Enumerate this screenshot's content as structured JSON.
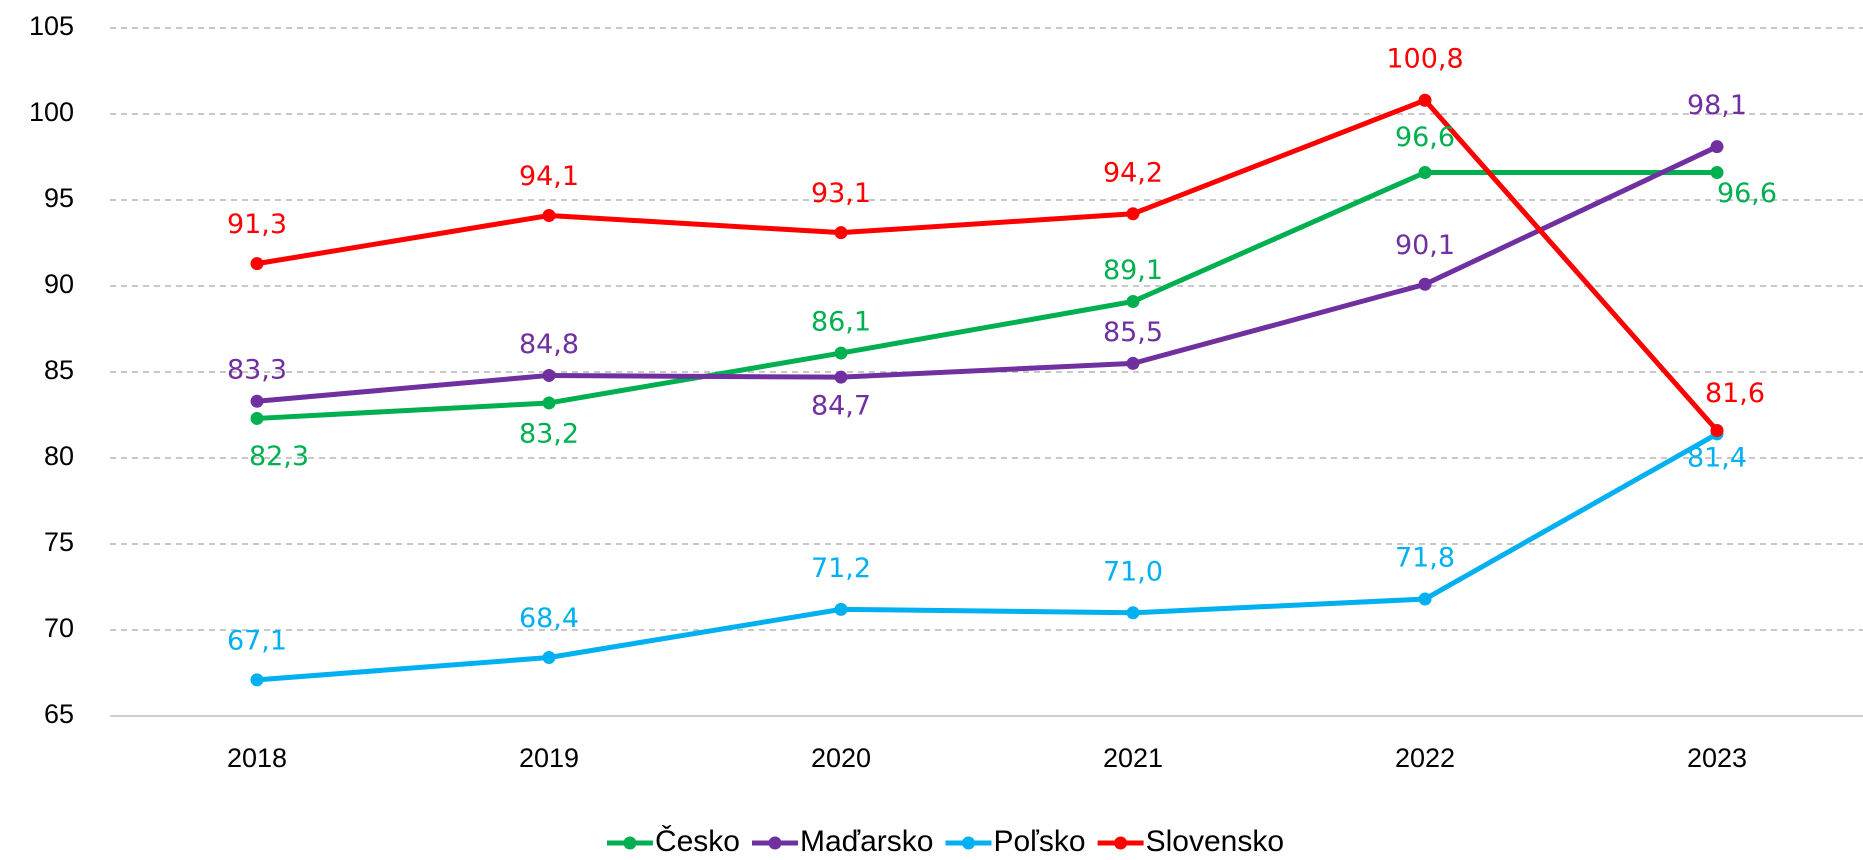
{
  "chart_data": {
    "type": "line",
    "categories": [
      "2018",
      "2019",
      "2020",
      "2021",
      "2022",
      "2023"
    ],
    "series": [
      {
        "name": "Česko",
        "color": "#00b050",
        "values": [
          82.3,
          83.2,
          86.1,
          89.1,
          96.6,
          96.6
        ],
        "value_labels": [
          "82,3",
          "83,2",
          "86,1",
          "89,1",
          "96,6",
          "96,6"
        ]
      },
      {
        "name": "Maďarsko",
        "color": "#7030a0",
        "values": [
          83.3,
          84.8,
          84.7,
          85.5,
          90.1,
          98.1
        ],
        "value_labels": [
          "83,3",
          "84,8",
          "84,7",
          "85,5",
          "90,1",
          "98,1"
        ]
      },
      {
        "name": "Poľsko",
        "color": "#00b0f0",
        "values": [
          67.1,
          68.4,
          71.2,
          71.0,
          71.8,
          81.4
        ],
        "value_labels": [
          "67,1",
          "68,4",
          "71,2",
          "71,0",
          "71,8",
          "81,4"
        ]
      },
      {
        "name": "Slovensko",
        "color": "#ff0000",
        "values": [
          91.3,
          94.1,
          93.1,
          94.2,
          100.8,
          81.6
        ],
        "value_labels": [
          "91,3",
          "94,1",
          "93,1",
          "94,2",
          "100,8",
          "81,6"
        ]
      }
    ],
    "ylim": [
      65,
      105
    ],
    "yticks": [
      65,
      70,
      75,
      80,
      85,
      90,
      95,
      100,
      105
    ],
    "grid": true,
    "legend": "bottom"
  }
}
